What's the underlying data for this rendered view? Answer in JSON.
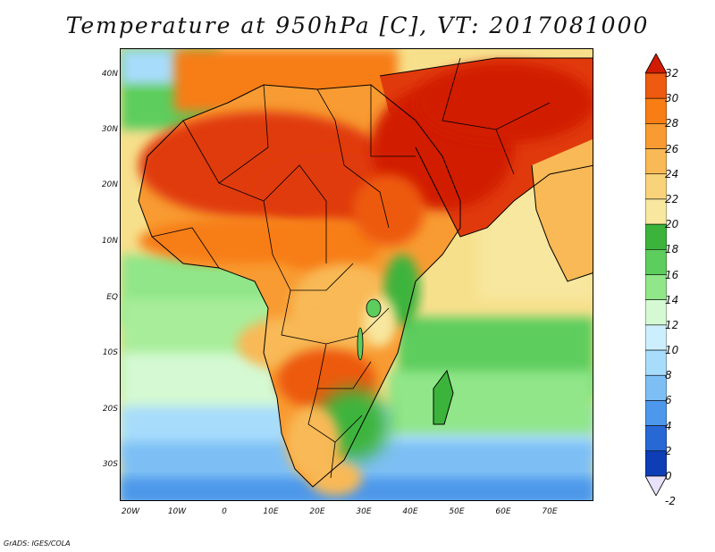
{
  "title": "Temperature at 950hPa [C], VT: 2017081000",
  "footer": "GrADS: IGES/COLA",
  "map": {
    "region": "Africa and Arabian Peninsula",
    "longitude_range": [
      "20W",
      "80E"
    ],
    "latitude_range": [
      "35S",
      "45N"
    ],
    "lat_labels": [
      "40N",
      "30N",
      "20N",
      "10N",
      "EQ",
      "10S",
      "20S",
      "30S"
    ],
    "lon_labels": [
      "20W",
      "10W",
      "0",
      "10E",
      "20E",
      "30E",
      "40E",
      "50E",
      "60E",
      "70E"
    ]
  },
  "colorbar": {
    "labels": [
      "32",
      "30",
      "28",
      "26",
      "24",
      "22",
      "20",
      "18",
      "16",
      "14",
      "12",
      "10",
      "8",
      "6",
      "4",
      "2",
      "0",
      "-2"
    ],
    "colors": [
      "#e03a0c",
      "#ed5a10",
      "#f77d14",
      "#f89b32",
      "#f8b956",
      "#f9d37a",
      "#f7e79f",
      "#3cb43c",
      "#5dcd5d",
      "#90e688",
      "#d4f9d3",
      "#cdeffd",
      "#a7dcfb",
      "#7dbff5",
      "#4d98ea",
      "#2868d5",
      "#0e3eb6",
      "#0a1f84"
    ],
    "top_cap_color": "#d11b02",
    "bottom_cap_color": "#e8e2fb"
  }
}
